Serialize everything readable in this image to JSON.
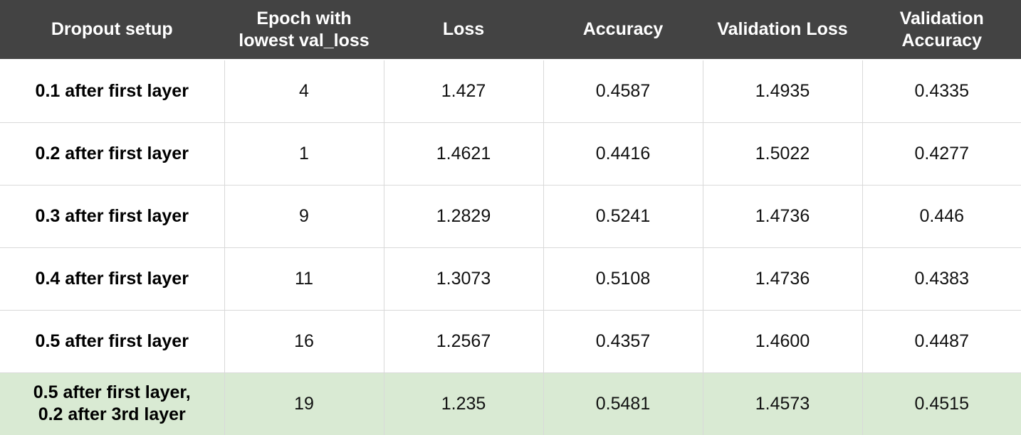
{
  "table": {
    "columns": [
      "Dropout setup",
      "Epoch with\nlowest val_loss",
      "Loss",
      "Accuracy",
      "Validation Loss",
      "Validation\nAccuracy"
    ],
    "rows": [
      {
        "setup": "0.1 after first layer",
        "epoch": "4",
        "loss": "1.427",
        "accuracy": "0.4587",
        "val_loss": "1.4935",
        "val_accuracy": "0.4335"
      },
      {
        "setup": "0.2 after first layer",
        "epoch": "1",
        "loss": "1.4621",
        "accuracy": "0.4416",
        "val_loss": "1.5022",
        "val_accuracy": "0.4277"
      },
      {
        "setup": "0.3 after first layer",
        "epoch": "9",
        "loss": "1.2829",
        "accuracy": "0.5241",
        "val_loss": "1.4736",
        "val_accuracy": "0.446"
      },
      {
        "setup": "0.4 after first layer",
        "epoch": "11",
        "loss": "1.3073",
        "accuracy": "0.5108",
        "val_loss": "1.4736",
        "val_accuracy": "0.4383"
      },
      {
        "setup": "0.5 after first layer",
        "epoch": "16",
        "loss": "1.2567",
        "accuracy": "0.4357",
        "val_loss": "1.4600",
        "val_accuracy": "0.4487"
      },
      {
        "setup": "0.5 after first layer,\n0.2 after 3rd layer",
        "epoch": "19",
        "loss": "1.235",
        "accuracy": "0.5481",
        "val_loss": "1.4573",
        "val_accuracy": "0.4515"
      }
    ],
    "highlight_color": "#d9ead3",
    "header_color": "#434343"
  }
}
